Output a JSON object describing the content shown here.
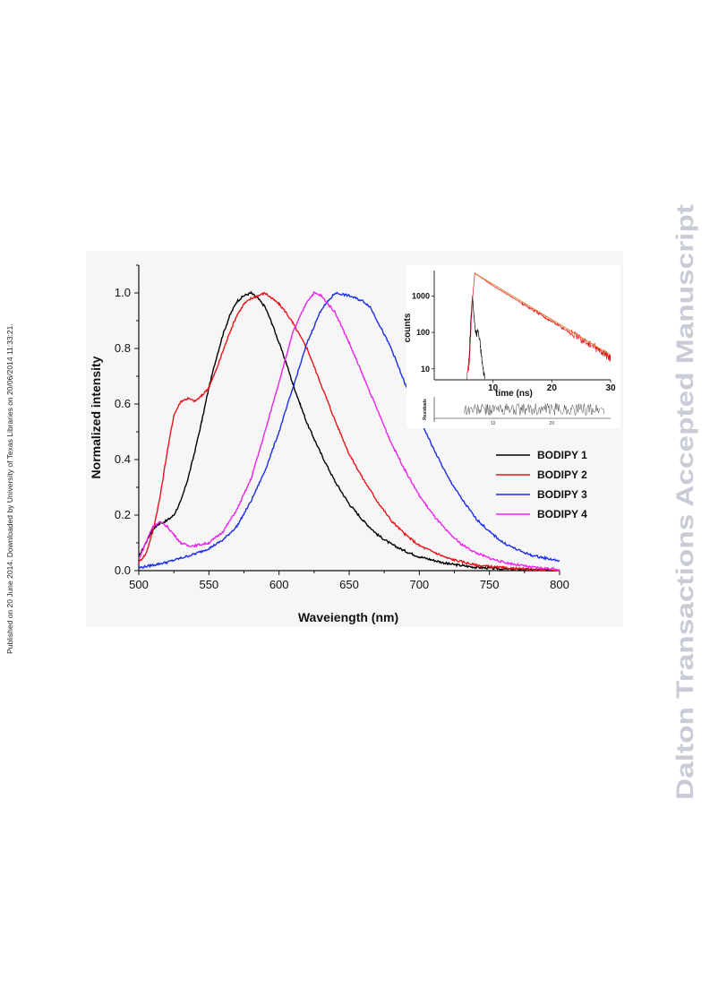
{
  "side_note": "Published on 20 June 2014. Downloaded by University of Texas Libraries on 20/06/2014 11:33:21.",
  "watermark": "Dalton Transactions Accepted Manuscript",
  "chart_data": [
    {
      "type": "line",
      "xlabel": "Waveiength (nm)",
      "ylabel": "Normalized intensity",
      "xlim": [
        500,
        800
      ],
      "ylim": [
        0,
        1.1
      ],
      "xticks": [
        "500",
        "550",
        "600",
        "650",
        "700",
        "750",
        "800"
      ],
      "yticks": [
        "0.0",
        "0.2",
        "0.4",
        "0.6",
        "0.8",
        "1.0"
      ],
      "legend_position": "right",
      "series": [
        {
          "name": "BODIPY 1",
          "color": "#000000",
          "x": [
            500,
            505,
            510,
            515,
            520,
            525,
            530,
            535,
            540,
            545,
            550,
            555,
            560,
            565,
            570,
            575,
            580,
            585,
            590,
            595,
            600,
            605,
            610,
            615,
            620,
            630,
            640,
            650,
            660,
            670,
            680,
            690,
            700,
            720,
            740,
            760,
            780,
            800
          ],
          "y": [
            0.05,
            0.1,
            0.15,
            0.17,
            0.18,
            0.2,
            0.25,
            0.33,
            0.43,
            0.54,
            0.66,
            0.76,
            0.85,
            0.92,
            0.97,
            0.99,
            1.0,
            0.98,
            0.95,
            0.89,
            0.82,
            0.75,
            0.67,
            0.6,
            0.53,
            0.42,
            0.32,
            0.24,
            0.18,
            0.13,
            0.095,
            0.07,
            0.05,
            0.025,
            0.012,
            0.006,
            0.003,
            0.001
          ]
        },
        {
          "name": "BODIPY 2",
          "color": "#e8141c",
          "x": [
            500,
            505,
            510,
            515,
            520,
            525,
            530,
            535,
            540,
            545,
            550,
            555,
            560,
            565,
            570,
            575,
            580,
            585,
            590,
            595,
            600,
            605,
            610,
            620,
            630,
            640,
            650,
            660,
            670,
            680,
            690,
            700,
            720,
            740,
            760,
            780,
            800
          ],
          "y": [
            0.03,
            0.06,
            0.14,
            0.26,
            0.42,
            0.56,
            0.61,
            0.62,
            0.61,
            0.63,
            0.66,
            0.72,
            0.79,
            0.86,
            0.92,
            0.96,
            0.98,
            0.99,
            1.0,
            0.98,
            0.96,
            0.93,
            0.89,
            0.8,
            0.67,
            0.54,
            0.42,
            0.33,
            0.25,
            0.18,
            0.13,
            0.09,
            0.045,
            0.02,
            0.01,
            0.004,
            0.001
          ]
        },
        {
          "name": "BODIPY 3",
          "color": "#1a2ee8",
          "x": [
            500,
            510,
            520,
            530,
            540,
            550,
            560,
            570,
            580,
            590,
            600,
            610,
            620,
            630,
            640,
            650,
            660,
            665,
            670,
            680,
            690,
            700,
            710,
            720,
            730,
            740,
            750,
            760,
            770,
            780,
            790,
            800
          ],
          "y": [
            0.01,
            0.02,
            0.03,
            0.045,
            0.06,
            0.08,
            0.11,
            0.16,
            0.25,
            0.36,
            0.5,
            0.66,
            0.82,
            0.94,
            1.0,
            0.99,
            0.97,
            0.95,
            0.9,
            0.8,
            0.67,
            0.55,
            0.44,
            0.34,
            0.26,
            0.19,
            0.14,
            0.1,
            0.075,
            0.055,
            0.045,
            0.035
          ]
        },
        {
          "name": "BODIPY 4",
          "color": "#ee22ee",
          "x": [
            500,
            505,
            510,
            515,
            520,
            525,
            530,
            535,
            540,
            550,
            560,
            570,
            580,
            590,
            600,
            610,
            620,
            625,
            630,
            640,
            650,
            660,
            670,
            680,
            690,
            700,
            710,
            720,
            730,
            740,
            750,
            760,
            780,
            800
          ],
          "y": [
            0.04,
            0.1,
            0.16,
            0.175,
            0.16,
            0.13,
            0.1,
            0.09,
            0.09,
            0.1,
            0.14,
            0.22,
            0.33,
            0.5,
            0.68,
            0.86,
            0.97,
            1.0,
            0.99,
            0.93,
            0.82,
            0.7,
            0.58,
            0.46,
            0.36,
            0.27,
            0.2,
            0.14,
            0.095,
            0.065,
            0.045,
            0.03,
            0.012,
            0.005
          ]
        }
      ]
    },
    {
      "type": "line",
      "xlabel": "time (ns)",
      "ylabel": "counts",
      "xlim": [
        0,
        30
      ],
      "ylim": [
        5,
        5000
      ],
      "yscale": "log",
      "xticks": [
        "10",
        "20",
        "30"
      ],
      "yticks": [
        "10",
        "100",
        "1000"
      ],
      "series": [
        {
          "name": "",
          "color": "#000000",
          "x": [
            5.8,
            6.0,
            6.2,
            6.5,
            6.8,
            7.0,
            7.2,
            7.4,
            7.6,
            7.8,
            8.0,
            8.3,
            8.6
          ],
          "y": [
            10,
            30,
            200,
            1000,
            250,
            110,
            90,
            120,
            80,
            50,
            25,
            10,
            6
          ]
        },
        {
          "name": "",
          "color": "#e8141c",
          "x": [
            5.5,
            6.0,
            6.5,
            6.9,
            7.2,
            10,
            15,
            20,
            25,
            28,
            30
          ],
          "y": [
            5,
            20,
            800,
            4200,
            3900,
            1900,
            620,
            200,
            65,
            33,
            20
          ]
        }
      ],
      "fit": {
        "color": "#d98a3a",
        "x": [
          6.9,
          30
        ],
        "y": [
          4200,
          24
        ]
      }
    },
    {
      "type": "line",
      "ylabel": "Residuals",
      "xticks": [
        "10",
        "20"
      ],
      "xlim": [
        0,
        30
      ],
      "ylim": [
        -1,
        1
      ],
      "series": [
        {
          "name": "",
          "color": "#444444",
          "x": [
            5,
            7,
            9,
            11,
            13,
            15,
            17,
            19,
            21,
            23,
            25,
            27,
            29
          ],
          "y": [
            0.2,
            -0.3,
            0.1,
            0.4,
            -0.2,
            0.15,
            -0.35,
            0.25,
            -0.1,
            0.3,
            -0.25,
            0.05,
            -0.15
          ]
        }
      ]
    }
  ]
}
